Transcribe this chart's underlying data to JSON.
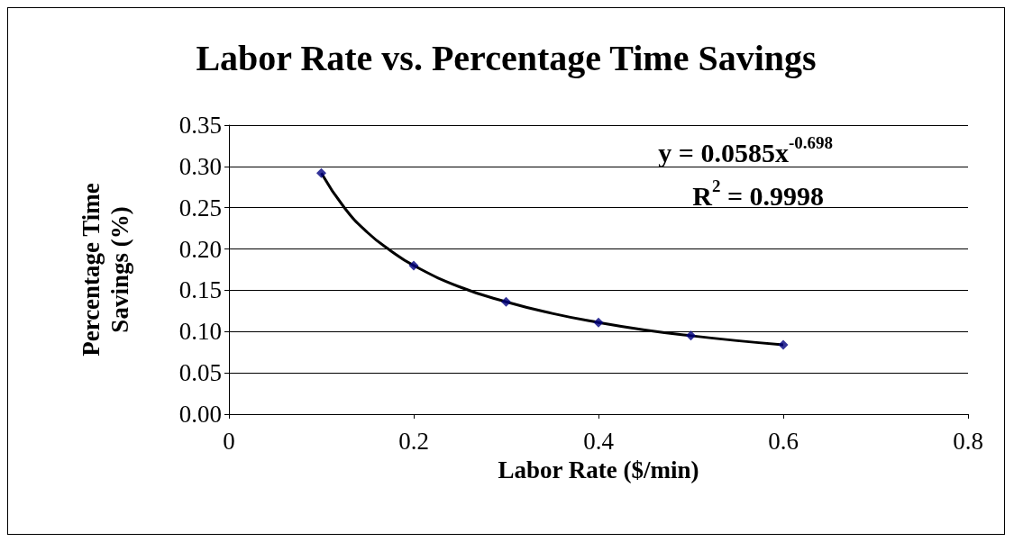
{
  "chart_data": {
    "type": "scatter",
    "title": "Labor Rate vs. Percentage Time Savings",
    "xlabel": "Labor Rate ($/min)",
    "ylabel": "Percentage Time Savings (%)",
    "x": [
      0.1,
      0.2,
      0.3,
      0.4,
      0.5,
      0.6
    ],
    "series": [
      {
        "color": "#000080",
        "values": [
          0.292,
          0.18,
          0.136,
          0.111,
          0.095,
          0.084
        ],
        "marker": "diamond"
      },
      {
        "type": "line",
        "color": "#000000",
        "x": [
          0.1,
          0.125,
          0.15,
          0.175,
          0.2,
          0.25,
          0.3,
          0.35,
          0.4,
          0.45,
          0.5,
          0.55,
          0.6
        ],
        "values": [
          0.292,
          0.25,
          0.22,
          0.198,
          0.18,
          0.154,
          0.136,
          0.122,
          0.111,
          0.102,
          0.095,
          0.089,
          0.084
        ],
        "marker": "none",
        "line_style": "solid"
      }
    ],
    "xlim": [
      0,
      0.8
    ],
    "xticks": [
      0,
      0.2,
      0.4,
      0.6,
      0.8
    ],
    "ylim": [
      0,
      0.35
    ],
    "yticks": [
      {
        "value": 0,
        "label": "0.00"
      },
      {
        "value": 0.05,
        "label": "0.05"
      },
      {
        "value": 0.1,
        "label": "0.10"
      },
      {
        "value": 0.15,
        "label": "0.15"
      },
      {
        "value": 0.2,
        "label": "0.20"
      },
      {
        "value": 0.25,
        "label": "0.25"
      },
      {
        "value": 0.3,
        "label": "0.30"
      },
      {
        "value": 0.35,
        "label": "0.35"
      }
    ],
    "grid": "y",
    "annotations": [
      "y = 0.0585x$^{-0.698}$",
      "R$^{2}$ = 0.9998"
    ]
  }
}
